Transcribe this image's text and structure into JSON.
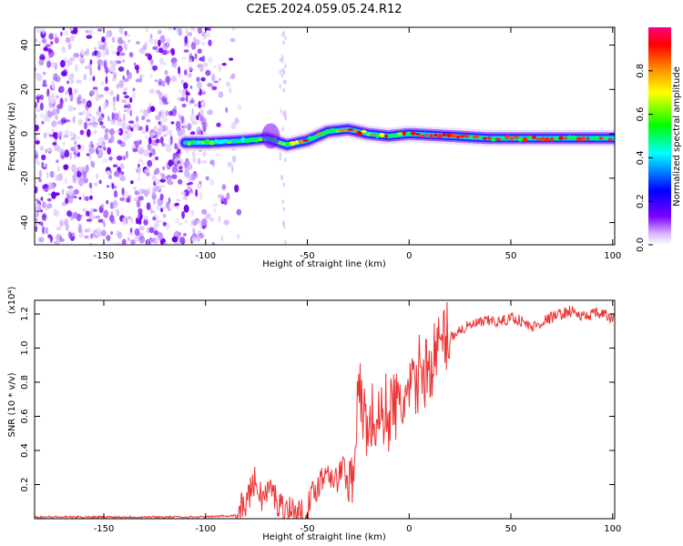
{
  "figure_title": "C2E5.2024.059.05.24.R12",
  "chart_data": [
    {
      "type": "heatmap",
      "xlabel": "Height of straight line (km)",
      "ylabel": "Frequency (Hz)",
      "xlim": [
        -184,
        101
      ],
      "ylim": [
        -50,
        48
      ],
      "x_ticks": [
        -150,
        -100,
        -50,
        0,
        50,
        100
      ],
      "y_ticks": [
        -40,
        -20,
        0,
        20,
        40
      ],
      "colorbar": {
        "label": "Normalized spectral amplitude",
        "range": [
          0,
          1
        ],
        "ticks": [
          "0.0",
          "0.2",
          "0.4",
          "0.6",
          "0.8"
        ],
        "colormap": [
          "#ffffff",
          "#7b00ff",
          "#0000ff",
          "#00ffff",
          "#00ff00",
          "#ffff00",
          "#ff8000",
          "#ff0000",
          "#ff0080"
        ]
      },
      "signal_trace": {
        "x": [
          -110,
          -100,
          -90,
          -80,
          -70,
          -60,
          -50,
          -40,
          -30,
          -20,
          -10,
          0,
          20,
          40,
          60,
          80,
          100
        ],
        "y": [
          -4,
          -4,
          -3.5,
          -3,
          -2,
          -5,
          -3,
          1,
          2,
          0,
          -1,
          0,
          -1,
          -2,
          -2,
          -2,
          -2
        ]
      },
      "noise_region": {
        "x_from": -184,
        "x_to": -95
      }
    },
    {
      "type": "line",
      "xlabel": "Height of straight line (km)",
      "ylabel": "SNR (10 * v/v)",
      "y_multiplier": "(x10⁴)",
      "xlim": [
        -184,
        101
      ],
      "ylim": [
        0,
        1.28
      ],
      "x_ticks": [
        -150,
        -100,
        -50,
        0,
        50,
        100
      ],
      "y_ticks": [
        "0.2",
        "0.4",
        "0.6",
        "0.8",
        "1.0",
        "1.2"
      ],
      "y_tick_values": [
        0.2,
        0.4,
        0.6,
        0.8,
        1.0,
        1.2
      ],
      "line_color": "#ee3333",
      "series": [
        {
          "x": [
            -184,
            -140,
            -100,
            -85,
            -80,
            -76,
            -72,
            -68,
            -64,
            -60,
            -56,
            -52,
            -50,
            -48,
            -45,
            -42,
            -40,
            -36,
            -32,
            -30,
            -28,
            -26,
            -24,
            -22,
            -20,
            -18,
            -15,
            -12,
            -10,
            -8,
            -5,
            -2,
            0,
            3,
            6,
            9,
            12,
            15,
            18,
            20,
            24,
            28,
            32,
            36,
            40,
            45,
            50,
            55,
            60,
            65,
            70,
            75,
            80,
            85,
            90,
            95,
            100
          ],
          "y": [
            0.01,
            0.01,
            0.01,
            0.02,
            0.1,
            0.22,
            0.12,
            0.18,
            0.08,
            0.06,
            0.04,
            0.02,
            0.05,
            0.12,
            0.2,
            0.25,
            0.3,
            0.22,
            0.3,
            0.2,
            0.25,
            0.6,
            0.7,
            0.62,
            0.5,
            0.6,
            0.55,
            0.65,
            0.6,
            0.7,
            0.62,
            0.72,
            0.7,
            0.78,
            0.9,
            0.85,
            0.95,
            1.0,
            1.08,
            1.06,
            1.1,
            1.12,
            1.14,
            1.15,
            1.16,
            1.15,
            1.18,
            1.16,
            1.12,
            1.15,
            1.18,
            1.2,
            1.22,
            1.18,
            1.2,
            1.2,
            1.17
          ]
        }
      ]
    }
  ]
}
